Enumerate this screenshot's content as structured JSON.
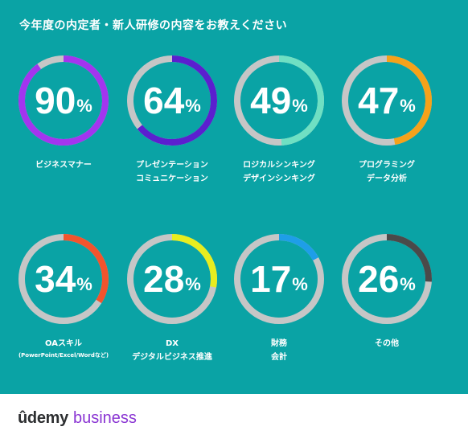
{
  "title": "今年度の内定者・新人研修の内容をお教えください",
  "chart_data": {
    "type": "donut",
    "unit": "%",
    "items": [
      {
        "value": 90,
        "label": [
          "ビジネスマナー"
        ],
        "color": "#a335ef"
      },
      {
        "value": 64,
        "label": [
          "プレゼンテーション",
          "コミュニケーション"
        ],
        "color": "#5b1fcf"
      },
      {
        "value": 49,
        "label": [
          "ロジカルシンキング",
          "デザインシンキング"
        ],
        "color": "#6fe0c3"
      },
      {
        "value": 47,
        "label": [
          "プログラミング",
          "データ分析"
        ],
        "color": "#f5a21a"
      },
      {
        "value": 34,
        "label": [
          "OAスキル"
        ],
        "note": "(PowerPoint/Excel/Wordなど)",
        "color": "#f2542d"
      },
      {
        "value": 28,
        "label": [
          "DX",
          "デジタルビジネス推進"
        ],
        "color": "#e8ed1f"
      },
      {
        "value": 17,
        "label": [
          "財務",
          "会計"
        ],
        "color": "#1e9ee8"
      },
      {
        "value": 26,
        "label": [
          "その他"
        ],
        "color": "#4a4a4a"
      }
    ]
  },
  "footer": {
    "brand": "ûdemy",
    "sub": "business"
  }
}
